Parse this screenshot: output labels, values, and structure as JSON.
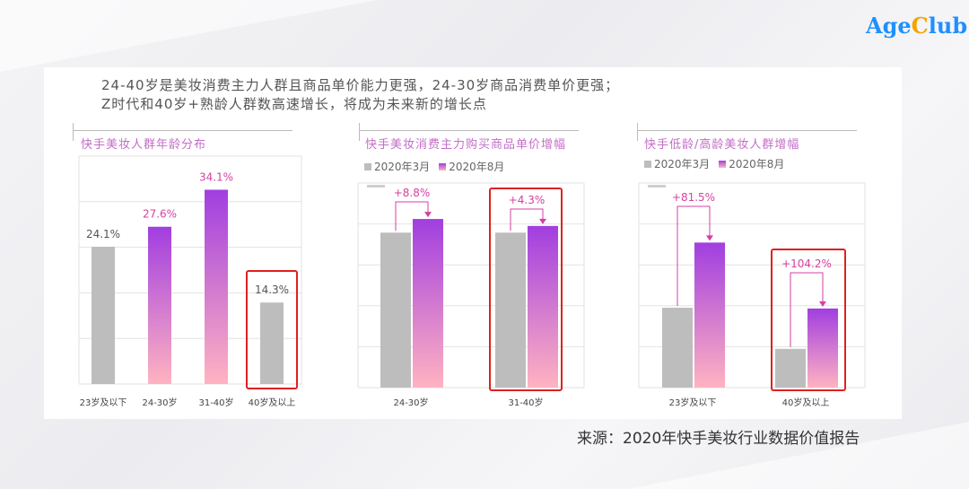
{
  "logo": {
    "part1": "Age",
    "part2": "C",
    "part3": "lub"
  },
  "headline": {
    "line1": "24-40岁是美妆消费主力人群且商品单价能力更强，24-30岁商品消费单价更强；",
    "line2": "Z时代和40岁+熟龄人群数高速增长，将成为未来新的增长点"
  },
  "source": "来源：2020年快手美妆行业数据价值报告",
  "colors": {
    "gray": "#bdbdbd",
    "pink_top": "#a13ee0",
    "pink_bottom": "#ffb3c1",
    "highlight": "#e02020",
    "title": "#c36ec8",
    "label_pink": "#d73fa0"
  },
  "chart_data": [
    {
      "type": "bar",
      "title": "快手美妆人群年龄分布",
      "categories": [
        "23岁及以下",
        "24-30岁",
        "31-40岁",
        "40岁及以上"
      ],
      "values": [
        24.1,
        27.6,
        34.1,
        14.3
      ],
      "labels": [
        "24.1%",
        "27.6%",
        "34.1%",
        "14.3%"
      ],
      "ylim": [
        0,
        40
      ],
      "highlight_index": 3,
      "grid": true
    },
    {
      "type": "bar",
      "title": "快手美妆消费主力购买商品单价增幅",
      "legend": [
        "2020年3月",
        "2020年8月"
      ],
      "categories": [
        "24-30岁",
        "31-40岁"
      ],
      "series": [
        {
          "name": "2020年3月",
          "values": [
            100,
            100
          ]
        },
        {
          "name": "2020年8月",
          "values": [
            108.8,
            104.3
          ]
        }
      ],
      "ylim": [
        0,
        132
      ],
      "growth_labels": [
        "+8.8%",
        "+4.3%"
      ],
      "highlight_index": 1,
      "grid": true
    },
    {
      "type": "bar",
      "title": "快手低龄/高龄美妆人群增幅",
      "legend": [
        "2020年3月",
        "2020年8月"
      ],
      "categories": [
        "23岁及以下",
        "40岁及以上"
      ],
      "series": [
        {
          "name": "2020年3月",
          "values": [
            100,
            48.5
          ]
        },
        {
          "name": "2020年8月",
          "values": [
            181.5,
            99
          ]
        }
      ],
      "ylim": [
        0,
        256
      ],
      "growth_labels": [
        "+81.5%",
        "+104.2%"
      ],
      "highlight_index": 1,
      "grid": true
    }
  ]
}
